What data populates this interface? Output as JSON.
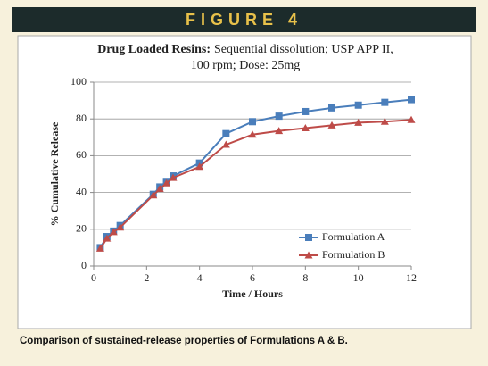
{
  "figure_label": "FIGURE 4",
  "caption": "Comparison of sustained-release properties of Formulations A & B.",
  "chart_data": {
    "type": "line",
    "title": [
      "Drug Loaded Resins:",
      "Sequential dissolution; USP APP II,",
      "100 rpm; Dose: 25mg"
    ],
    "xlabel": "Time / Hours",
    "ylabel": "% Cumulative Release",
    "x": [
      0.25,
      0.5,
      0.75,
      1,
      2.25,
      2.5,
      2.75,
      3,
      4,
      5,
      6,
      7,
      8,
      9,
      10,
      11,
      12
    ],
    "series": [
      {
        "name": "Formulation A",
        "color": "#4a7ebb",
        "marker": "square",
        "values": [
          10,
          16,
          19,
          22,
          39,
          43,
          46,
          49,
          56,
          72,
          78.5,
          81.5,
          84,
          86,
          87.5,
          89,
          90.5
        ]
      },
      {
        "name": "Formulation B",
        "color": "#be4b48",
        "marker": "triangle",
        "values": [
          9.5,
          15,
          18.5,
          21,
          38.5,
          42,
          45,
          48,
          54,
          66,
          71.5,
          73.5,
          75,
          76.5,
          78,
          78.5,
          79.5
        ]
      }
    ],
    "xlim": [
      0,
      12
    ],
    "ylim": [
      0,
      100
    ],
    "xticks": [
      0,
      2,
      4,
      6,
      8,
      10,
      12
    ],
    "yticks": [
      0,
      20,
      40,
      60,
      80,
      100
    ],
    "grid": true,
    "legend": "lower right"
  }
}
